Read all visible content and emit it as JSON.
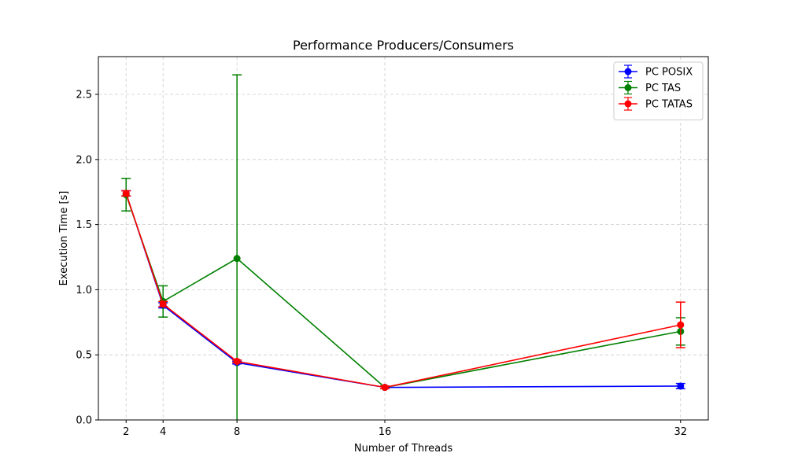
{
  "chart_data": {
    "type": "line",
    "title": "Performance Producers/Consumers",
    "xlabel": "Number of Threads",
    "ylabel": "Execution Time [s]",
    "x": [
      2,
      4,
      8,
      16,
      32
    ],
    "xticks": [
      2,
      4,
      8,
      16,
      32
    ],
    "xlim": [
      0.5,
      33.5
    ],
    "yticks": [
      0.0,
      0.5,
      1.0,
      1.5,
      2.0,
      2.5
    ],
    "ytick_labels": [
      "0.0",
      "0.5",
      "1.0",
      "1.5",
      "2.0",
      "2.5"
    ],
    "ylim": [
      0,
      2.79
    ],
    "grid": true,
    "legend_position": "top-right",
    "error_bars": true,
    "series": [
      {
        "name": "PC POSIX",
        "color": "#0000ff",
        "values": [
          1.74,
          0.88,
          0.44,
          0.25,
          0.26
        ],
        "errors": [
          0.02,
          0.02,
          0.01,
          0.01,
          0.02
        ]
      },
      {
        "name": "PC TAS",
        "color": "#008000",
        "values": [
          1.73,
          0.91,
          1.24,
          0.25,
          0.68
        ],
        "errors": [
          0.125,
          0.12,
          1.41,
          0.01,
          0.105
        ]
      },
      {
        "name": "PC TATAS",
        "color": "#ff0000",
        "values": [
          1.74,
          0.89,
          0.45,
          0.25,
          0.73
        ],
        "errors": [
          0.02,
          0.02,
          0.01,
          0.01,
          0.175
        ]
      }
    ]
  }
}
